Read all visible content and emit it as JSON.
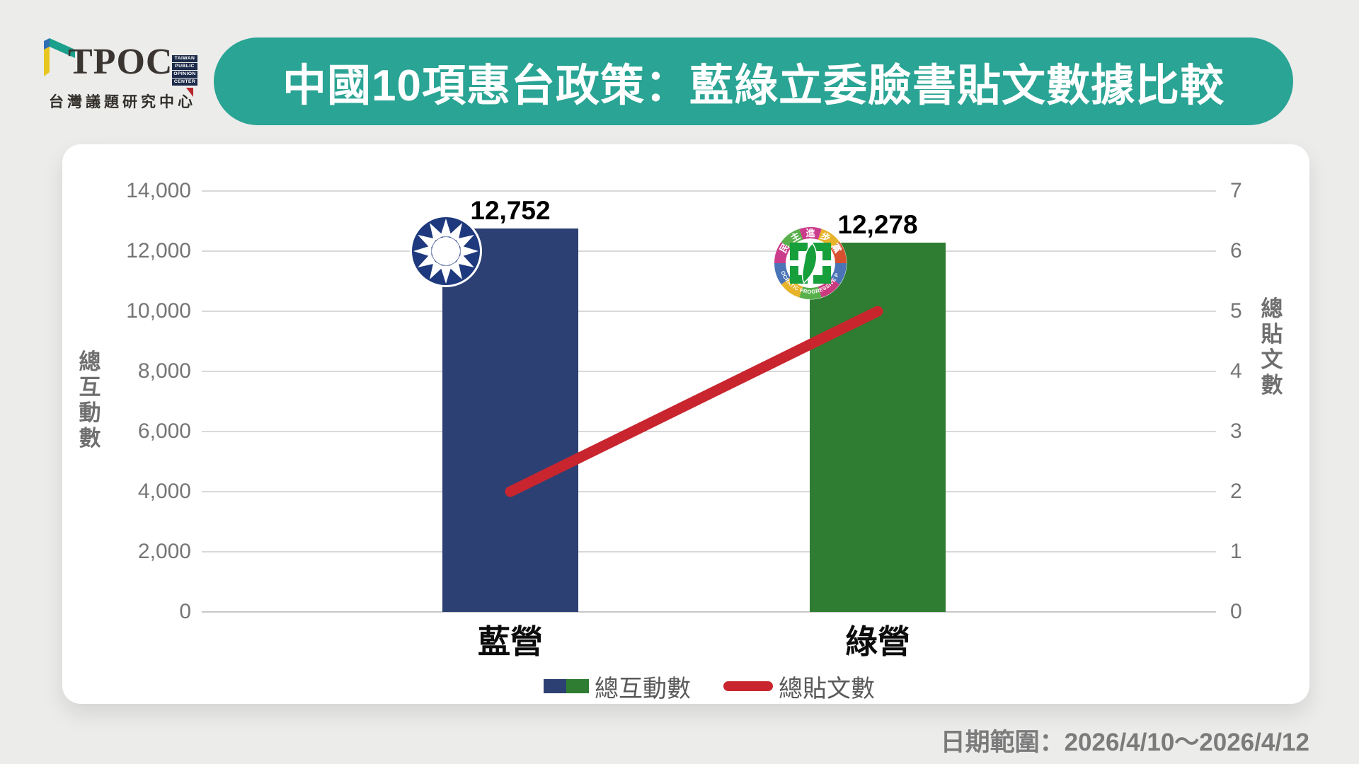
{
  "brand": {
    "name": "TPOC",
    "stack_words": [
      "TAIWAN",
      "PUBLIC",
      "OPINION",
      "CENTER"
    ],
    "subtitle": "台灣議題研究中心"
  },
  "banner": {
    "title": "中國10項惠台政策：藍綠立委臉書貼文數據比較"
  },
  "chart_data": {
    "type": "bar",
    "subtype": "bar+line combo, dual axis",
    "categories": [
      "藍營",
      "綠營"
    ],
    "series": [
      {
        "name": "總互動數",
        "type": "bar",
        "axis": "left",
        "values": [
          12752,
          12278
        ],
        "data_labels": [
          "12,752",
          "12,278"
        ],
        "colors": [
          "#2d4073",
          "#2f7d32"
        ]
      },
      {
        "name": "總貼文數",
        "type": "line",
        "axis": "right",
        "values": [
          2,
          5
        ],
        "color": "#c9252e"
      }
    ],
    "left_axis": {
      "label": "總互動數",
      "min": 0,
      "max": 14000,
      "ticks": [
        "14,000",
        "12,000",
        "10,000",
        "8,000",
        "6,000",
        "4,000",
        "2,000",
        "0"
      ]
    },
    "right_axis": {
      "label": "總貼文數",
      "min": 0,
      "max": 7,
      "ticks": [
        "7",
        "6",
        "5",
        "4",
        "3",
        "2",
        "1",
        "0"
      ]
    },
    "legend": {
      "position": "bottom",
      "items": [
        "總互動數",
        "總貼文數"
      ]
    },
    "grid": true,
    "bar_logos": [
      "kmt-emblem",
      "dpp-emblem"
    ]
  },
  "footer": {
    "date_range": "日期範圍：2026/4/10～2026/4/12"
  },
  "colors": {
    "page_bg": "#ececeb",
    "card_bg": "#ffffff",
    "banner_teal": "#2aa494",
    "bar_blue": "#2d4073",
    "bar_green": "#2f7d32",
    "line_red": "#c9252e",
    "grid": "#d9d9d9",
    "tick_text": "#757575",
    "kmt_blue": "#1e397d",
    "dpp_green": "#169f3b"
  }
}
